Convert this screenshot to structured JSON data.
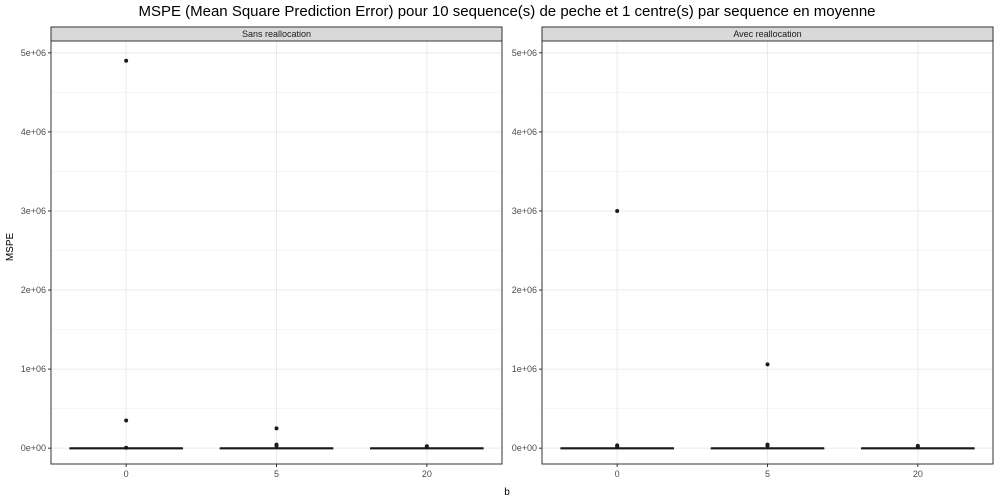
{
  "chart_data": {
    "type": "boxplot",
    "title": "MSPE (Mean Square Prediction Error) pour 10 sequence(s) de peche et 1 centre(s) par sequence en moyenne",
    "xlabel": "b",
    "ylabel": "MSPE",
    "categories": [
      "0",
      "5",
      "20"
    ],
    "ylim": [
      -200000,
      5150000
    ],
    "y_ticks": [
      0,
      1000000,
      2000000,
      3000000,
      4000000,
      5000000
    ],
    "y_tick_labels": [
      "0e+00",
      "1e+06",
      "2e+06",
      "3e+06",
      "4e+06",
      "5e+06"
    ],
    "grid": true,
    "panels": [
      {
        "label": "Sans reallocation",
        "boxes": [
          {
            "category": "0",
            "q1": 0,
            "median": 1000,
            "q3": 3000,
            "outliers": [
              4900000,
              350000,
              5000
            ]
          },
          {
            "category": "5",
            "q1": 0,
            "median": 1000,
            "q3": 3000,
            "outliers": [
              250000,
              45000,
              30000
            ]
          },
          {
            "category": "20",
            "q1": 0,
            "median": 1000,
            "q3": 3000,
            "outliers": [
              25000,
              15000
            ]
          }
        ]
      },
      {
        "label": "Avec reallocation",
        "boxes": [
          {
            "category": "0",
            "q1": 0,
            "median": 1000,
            "q3": 3000,
            "outliers": [
              3000000,
              35000,
              20000
            ]
          },
          {
            "category": "5",
            "q1": 0,
            "median": 1000,
            "q3": 3000,
            "outliers": [
              1060000,
              45000,
              30000
            ]
          },
          {
            "category": "20",
            "q1": 0,
            "median": 1000,
            "q3": 3000,
            "outliers": [
              30000,
              15000
            ]
          }
        ]
      }
    ]
  }
}
